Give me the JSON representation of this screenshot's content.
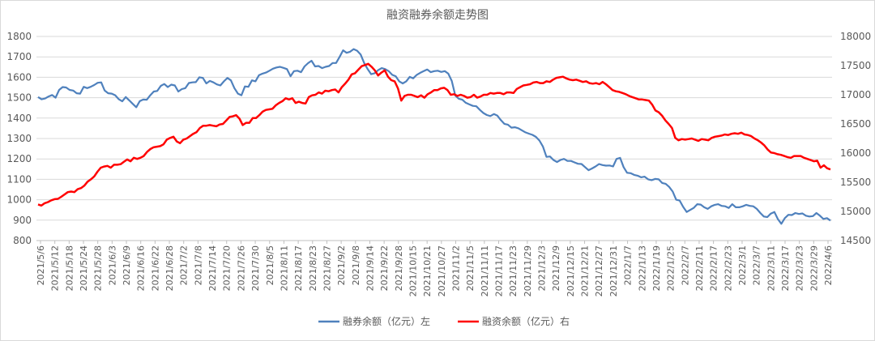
{
  "chart_data": {
    "type": "line",
    "title": "融资融券余额走势图",
    "left_axis": {
      "ylim": [
        800,
        1800
      ],
      "ticks": [
        "800",
        "900",
        "1000",
        "1100",
        "1200",
        "1300",
        "1400",
        "1500",
        "1600",
        "1700",
        "1800"
      ]
    },
    "right_axis": {
      "ylim": [
        14500,
        18000
      ],
      "ticks": [
        "14500",
        "15000",
        "15500",
        "16000",
        "16500",
        "17000",
        "17500",
        "18000"
      ]
    },
    "x_tick_labels": [
      "2021/5/6",
      "2021/5/12",
      "2021/5/18",
      "2021/5/24",
      "2021/5/28",
      "2021/6/3",
      "2021/6/9",
      "2021/6/16",
      "2021/6/22",
      "2021/6/28",
      "2021/7/2",
      "2021/7/8",
      "2021/7/14",
      "2021/7/20",
      "2021/7/26",
      "2021/7/30",
      "2021/8/5",
      "2021/8/11",
      "2021/8/17",
      "2021/8/23",
      "2021/8/27",
      "2021/9/2",
      "2021/9/8",
      "2021/9/14",
      "2021/9/22",
      "2021/9/28",
      "2021/10/15",
      "2021/10/21",
      "2021/10/27",
      "2021/11/2",
      "2021/11/5",
      "2021/11/11",
      "2021/11/17",
      "2021/11/23",
      "2021/11/29",
      "2021/12/3",
      "2021/12/9",
      "2021/12/15",
      "2021/12/21",
      "2021/12/27",
      "2021/12/31",
      "2022/1/7",
      "2022/1/13",
      "2022/1/19",
      "2022/1/25",
      "2022/2/7",
      "2022/2/11",
      "2022/2/17",
      "2022/2/23",
      "2022/3/1",
      "2022/3/7",
      "2022/3/11",
      "2022/3/17",
      "2022/3/23",
      "2022/3/29",
      "2022/4/6"
    ],
    "series": [
      {
        "name": "融券余额（亿元）左",
        "axis": "left",
        "color": "#4f81bd",
        "values": [
          1503,
          1492,
          1496,
          1506,
          1513,
          1500,
          1538,
          1552,
          1550,
          1538,
          1535,
          1522,
          1520,
          1553,
          1547,
          1553,
          1562,
          1573,
          1575,
          1535,
          1522,
          1520,
          1512,
          1493,
          1482,
          1503,
          1487,
          1470,
          1453,
          1483,
          1491,
          1490,
          1512,
          1530,
          1533,
          1558,
          1567,
          1552,
          1564,
          1560,
          1530,
          1542,
          1547,
          1572,
          1575,
          1576,
          1600,
          1597,
          1570,
          1582,
          1575,
          1565,
          1560,
          1580,
          1597,
          1585,
          1547,
          1520,
          1512,
          1555,
          1553,
          1585,
          1580,
          1610,
          1618,
          1623,
          1632,
          1642,
          1648,
          1651,
          1646,
          1640,
          1605,
          1630,
          1632,
          1625,
          1653,
          1669,
          1681,
          1653,
          1655,
          1645,
          1651,
          1655,
          1670,
          1670,
          1700,
          1732,
          1720,
          1725,
          1738,
          1730,
          1712,
          1670,
          1640,
          1615,
          1620,
          1635,
          1645,
          1640,
          1630,
          1612,
          1605,
          1580,
          1570,
          1580,
          1602,
          1595,
          1612,
          1622,
          1630,
          1638,
          1625,
          1630,
          1632,
          1626,
          1630,
          1618,
          1582,
          1510,
          1495,
          1490,
          1475,
          1467,
          1460,
          1458,
          1440,
          1425,
          1415,
          1410,
          1420,
          1412,
          1390,
          1372,
          1368,
          1353,
          1355,
          1350,
          1340,
          1330,
          1324,
          1318,
          1308,
          1290,
          1260,
          1210,
          1212,
          1195,
          1185,
          1195,
          1200,
          1190,
          1190,
          1183,
          1176,
          1175,
          1160,
          1145,
          1153,
          1163,
          1175,
          1170,
          1167,
          1168,
          1163,
          1200,
          1205,
          1160,
          1132,
          1130,
          1122,
          1118,
          1110,
          1113,
          1100,
          1096,
          1102,
          1100,
          1082,
          1078,
          1063,
          1040,
          1000,
          996,
          965,
          940,
          950,
          960,
          978,
          976,
          963,
          955,
          968,
          975,
          978,
          970,
          968,
          960,
          978,
          963,
          963,
          968,
          975,
          970,
          968,
          955,
          935,
          918,
          915,
          932,
          940,
          905,
          882,
          910,
          926,
          925,
          935,
          930,
          933,
          922,
          918,
          920,
          935,
          922,
          906,
          910,
          898
        ]
      },
      {
        "name": "融资余额（亿元）右",
        "axis": "right",
        "color": "#ff0000",
        "values": [
          15120,
          15100,
          15140,
          15160,
          15190,
          15210,
          15215,
          15250,
          15290,
          15330,
          15340,
          15330,
          15380,
          15400,
          15440,
          15510,
          15550,
          15600,
          15680,
          15750,
          15770,
          15780,
          15750,
          15800,
          15800,
          15810,
          15850,
          15890,
          15860,
          15920,
          15900,
          15920,
          15950,
          16020,
          16070,
          16100,
          16110,
          16120,
          16150,
          16230,
          16260,
          16280,
          16200,
          16170,
          16230,
          16250,
          16290,
          16330,
          16360,
          16430,
          16470,
          16470,
          16480,
          16470,
          16460,
          16490,
          16500,
          16560,
          16620,
          16630,
          16650,
          16590,
          16480,
          16520,
          16520,
          16600,
          16600,
          16650,
          16710,
          16740,
          16750,
          16760,
          16820,
          16860,
          16890,
          16940,
          16920,
          16940,
          16860,
          16880,
          16860,
          16850,
          16960,
          16990,
          17000,
          17040,
          17020,
          17070,
          17060,
          17080,
          17090,
          17040,
          17130,
          17190,
          17260,
          17350,
          17370,
          17430,
          17490,
          17510,
          17530,
          17480,
          17420,
          17330,
          17380,
          17420,
          17310,
          17250,
          17230,
          17110,
          16900,
          16980,
          17000,
          17000,
          16980,
          16960,
          16990,
          16950,
          17010,
          17040,
          17080,
          17080,
          17110,
          17120,
          17080,
          17000,
          17010,
          16980,
          17000,
          16980,
          16950,
          16960,
          17000,
          16950,
          16970,
          17000,
          17000,
          17030,
          17020,
          17030,
          17030,
          17010,
          17040,
          17040,
          17030,
          17100,
          17130,
          17160,
          17170,
          17180,
          17210,
          17220,
          17200,
          17200,
          17230,
          17220,
          17260,
          17290,
          17300,
          17310,
          17280,
          17260,
          17250,
          17260,
          17240,
          17220,
          17230,
          17200,
          17190,
          17200,
          17180,
          17220,
          17180,
          17130,
          17080,
          17060,
          17050,
          17030,
          17010,
          16980,
          16960,
          16940,
          16920,
          16920,
          16910,
          16900,
          16830,
          16730,
          16700,
          16640,
          16560,
          16500,
          16430,
          16260,
          16220,
          16240,
          16230,
          16240,
          16250,
          16230,
          16210,
          16240,
          16230,
          16220,
          16260,
          16280,
          16290,
          16300,
          16320,
          16310,
          16330,
          16340,
          16330,
          16350,
          16320,
          16310,
          16290,
          16250,
          16220,
          16180,
          16130,
          16060,
          16010,
          16000,
          15980,
          15970,
          15950,
          15930,
          15920,
          15950,
          15950,
          15950,
          15920,
          15900,
          15880,
          15860,
          15870,
          15750,
          15790,
          15740,
          15720
        ]
      }
    ],
    "legend_position": "bottom-center",
    "grid": "horizontal"
  }
}
